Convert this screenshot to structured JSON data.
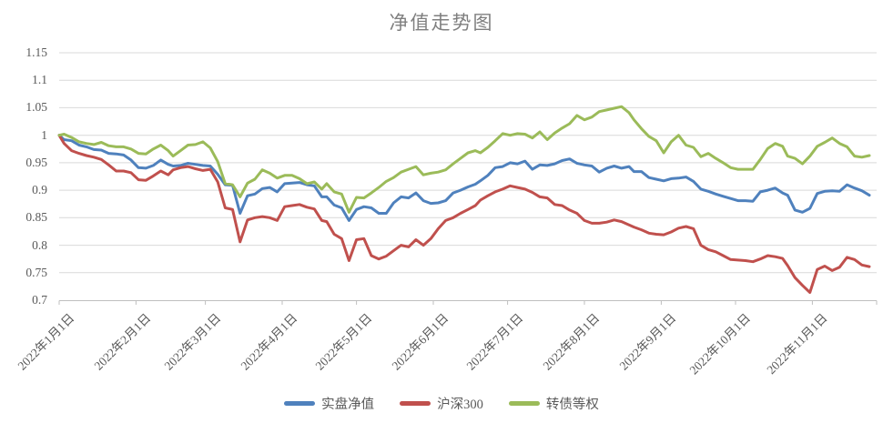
{
  "chart_data": {
    "type": "line",
    "title": "净值走势图",
    "year": "2022",
    "xlabel": "",
    "ylabel": "",
    "ylim": [
      0.7,
      1.15
    ],
    "ytick_step": 0.05,
    "grid": "horizontal",
    "legend_position": "bottom",
    "colors": {
      "gridline": "#d9d9d9",
      "axis": "#bfbfbf",
      "label": "#595959",
      "title": "#7f7f7f"
    },
    "y_tick_labels": [
      "1.15",
      "1.1",
      "1.05",
      "1",
      "0.95",
      "0.9",
      "0.85",
      "0.8",
      "0.75",
      "0.7"
    ],
    "x_tick_labels": [
      "2022年1月1日",
      "2022年2月1日",
      "2022年3月1日",
      "2022年4月1日",
      "2022年5月1日",
      "2022年6月1日",
      "2022年7月1日",
      "2022年8月1日",
      "2022年9月1日",
      "2022年10月1日",
      "2022年11月1日"
    ],
    "x_tick_dates": [
      "01-01",
      "02-01",
      "03-01",
      "04-01",
      "05-01",
      "06-01",
      "07-01",
      "08-01",
      "09-01",
      "10-01",
      "11-01"
    ],
    "x": [
      "01-01",
      "01-03",
      "01-06",
      "01-09",
      "01-12",
      "01-15",
      "01-18",
      "01-21",
      "01-24",
      "01-27",
      "01-30",
      "02-02",
      "02-05",
      "02-08",
      "02-11",
      "02-14",
      "02-16",
      "02-19",
      "02-22",
      "02-25",
      "02-28",
      "03-03",
      "03-06",
      "03-09",
      "03-12",
      "03-15",
      "03-18",
      "03-21",
      "03-24",
      "03-27",
      "03-30",
      "04-02",
      "04-05",
      "04-08",
      "04-11",
      "04-14",
      "04-17",
      "04-19",
      "04-22",
      "04-25",
      "04-28",
      "05-01",
      "05-04",
      "05-07",
      "05-10",
      "05-13",
      "05-16",
      "05-19",
      "05-22",
      "05-25",
      "05-28",
      "05-31",
      "06-03",
      "06-06",
      "06-09",
      "06-12",
      "06-15",
      "06-18",
      "06-20",
      "06-23",
      "06-26",
      "06-29",
      "07-02",
      "07-05",
      "07-08",
      "07-11",
      "07-14",
      "07-17",
      "07-20",
      "07-23",
      "07-26",
      "07-29",
      "08-01",
      "08-04",
      "08-07",
      "08-10",
      "08-13",
      "08-16",
      "08-19",
      "08-21",
      "08-24",
      "08-27",
      "08-30",
      "09-02",
      "09-05",
      "09-08",
      "09-11",
      "09-14",
      "09-17",
      "09-20",
      "09-23",
      "09-26",
      "09-29",
      "10-02",
      "10-05",
      "10-08",
      "10-11",
      "10-14",
      "10-17",
      "10-20",
      "10-22",
      "10-25",
      "10-28",
      "10-31",
      "11-03",
      "11-06",
      "11-09",
      "11-12",
      "11-15",
      "11-18",
      "11-21",
      "11-24"
    ],
    "series": [
      {
        "name": "实盘净值",
        "key": "portfolio-nav",
        "color": "#4F81BD",
        "values": [
          1.0,
          0.992,
          0.99,
          0.982,
          0.979,
          0.974,
          0.973,
          0.967,
          0.966,
          0.964,
          0.955,
          0.941,
          0.94,
          0.945,
          0.955,
          0.947,
          0.944,
          0.945,
          0.949,
          0.947,
          0.945,
          0.944,
          0.929,
          0.91,
          0.909,
          0.858,
          0.89,
          0.893,
          0.903,
          0.905,
          0.897,
          0.912,
          0.913,
          0.914,
          0.91,
          0.908,
          0.888,
          0.888,
          0.873,
          0.868,
          0.845,
          0.865,
          0.87,
          0.868,
          0.858,
          0.858,
          0.877,
          0.888,
          0.886,
          0.895,
          0.881,
          0.876,
          0.877,
          0.881,
          0.895,
          0.9,
          0.906,
          0.911,
          0.917,
          0.927,
          0.941,
          0.943,
          0.95,
          0.948,
          0.953,
          0.938,
          0.946,
          0.945,
          0.948,
          0.954,
          0.957,
          0.949,
          0.946,
          0.944,
          0.933,
          0.94,
          0.944,
          0.94,
          0.943,
          0.934,
          0.934,
          0.923,
          0.92,
          0.917,
          0.921,
          0.922,
          0.924,
          0.916,
          0.902,
          0.898,
          0.893,
          0.889,
          0.885,
          0.881,
          0.881,
          0.88,
          0.897,
          0.9,
          0.904,
          0.895,
          0.891,
          0.864,
          0.86,
          0.867,
          0.894,
          0.898,
          0.899,
          0.898,
          0.91,
          0.904,
          0.899,
          0.891
        ]
      },
      {
        "name": "沪深300",
        "key": "csi300",
        "color": "#C0504D",
        "values": [
          1.0,
          0.985,
          0.972,
          0.967,
          0.963,
          0.96,
          0.956,
          0.946,
          0.935,
          0.935,
          0.932,
          0.919,
          0.918,
          0.926,
          0.935,
          0.928,
          0.937,
          0.941,
          0.943,
          0.939,
          0.936,
          0.938,
          0.915,
          0.868,
          0.865,
          0.806,
          0.846,
          0.85,
          0.852,
          0.85,
          0.845,
          0.87,
          0.872,
          0.874,
          0.869,
          0.866,
          0.845,
          0.843,
          0.82,
          0.812,
          0.772,
          0.81,
          0.812,
          0.781,
          0.775,
          0.78,
          0.79,
          0.8,
          0.797,
          0.81,
          0.8,
          0.812,
          0.83,
          0.845,
          0.85,
          0.858,
          0.865,
          0.872,
          0.882,
          0.89,
          0.897,
          0.902,
          0.908,
          0.905,
          0.902,
          0.896,
          0.888,
          0.886,
          0.874,
          0.872,
          0.864,
          0.858,
          0.845,
          0.84,
          0.84,
          0.842,
          0.846,
          0.843,
          0.837,
          0.833,
          0.828,
          0.822,
          0.82,
          0.819,
          0.824,
          0.831,
          0.834,
          0.83,
          0.8,
          0.792,
          0.788,
          0.781,
          0.774,
          0.773,
          0.772,
          0.77,
          0.775,
          0.781,
          0.779,
          0.776,
          0.763,
          0.741,
          0.727,
          0.714,
          0.756,
          0.762,
          0.754,
          0.76,
          0.778,
          0.774,
          0.764,
          0.761
        ]
      },
      {
        "name": "转债等权",
        "key": "convertible-equal-weight",
        "color": "#9BBB59",
        "values": [
          1.0,
          1.002,
          0.996,
          0.988,
          0.985,
          0.983,
          0.987,
          0.981,
          0.979,
          0.979,
          0.975,
          0.967,
          0.966,
          0.975,
          0.982,
          0.972,
          0.962,
          0.972,
          0.982,
          0.983,
          0.988,
          0.977,
          0.952,
          0.912,
          0.91,
          0.888,
          0.913,
          0.92,
          0.937,
          0.931,
          0.922,
          0.927,
          0.927,
          0.921,
          0.912,
          0.915,
          0.902,
          0.912,
          0.897,
          0.893,
          0.86,
          0.887,
          0.886,
          0.895,
          0.905,
          0.916,
          0.923,
          0.933,
          0.938,
          0.943,
          0.928,
          0.931,
          0.933,
          0.937,
          0.948,
          0.958,
          0.968,
          0.972,
          0.968,
          0.978,
          0.99,
          1.003,
          1.0,
          1.003,
          1.002,
          0.995,
          1.006,
          0.992,
          1.004,
          1.013,
          1.021,
          1.036,
          1.028,
          1.033,
          1.043,
          1.046,
          1.049,
          1.052,
          1.041,
          1.028,
          1.012,
          0.998,
          0.99,
          0.968,
          0.988,
          1.0,
          0.982,
          0.978,
          0.961,
          0.967,
          0.958,
          0.95,
          0.941,
          0.938,
          0.938,
          0.938,
          0.956,
          0.976,
          0.985,
          0.98,
          0.962,
          0.958,
          0.948,
          0.962,
          0.98,
          0.987,
          0.995,
          0.985,
          0.979,
          0.962,
          0.96,
          0.963
        ]
      }
    ]
  }
}
